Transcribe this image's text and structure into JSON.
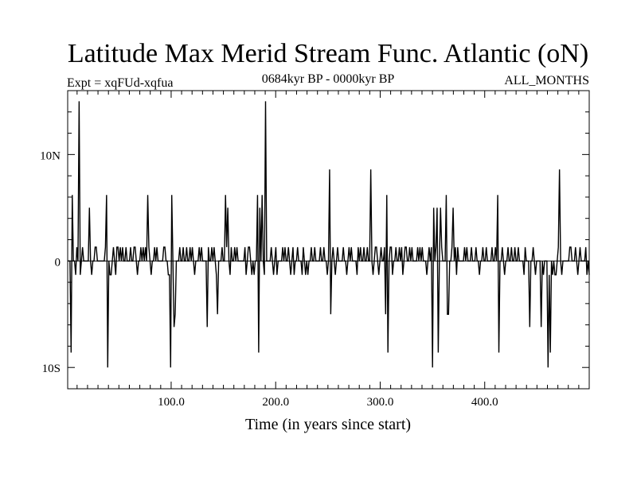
{
  "chart_data": {
    "type": "line",
    "title": "Latitude Max Merid Stream Func. Atlantic (oN)",
    "subtitle_left": "Expt = xqFUd-xqfua",
    "subtitle_center": "0684kyr BP - 0000kyr BP",
    "subtitle_right": "ALL_MONTHS",
    "xlabel": "Time (in years since start)",
    "ylabel": "",
    "xlim": [
      1,
      500
    ],
    "ylim": [
      -12,
      16
    ],
    "x_ticks": [
      {
        "value": 100,
        "label": "100.0"
      },
      {
        "value": 200,
        "label": "200.0"
      },
      {
        "value": 300,
        "label": "300.0"
      },
      {
        "value": 400,
        "label": "400.0"
      }
    ],
    "y_ticks": [
      {
        "value": 10,
        "label": "10N"
      },
      {
        "value": 0,
        "label": "0"
      },
      {
        "value": -10,
        "label": "10S"
      }
    ],
    "x_minor_step": 10,
    "y_minor_step": 2,
    "baseline": 0,
    "series": [
      {
        "name": "latitude_max_stream_function",
        "values": [
          0,
          0,
          0,
          -8.6,
          6.2,
          0,
          0,
          -1.3,
          1.3,
          0,
          15,
          -1.3,
          0,
          1.3,
          0,
          0,
          0,
          0,
          0,
          5,
          0,
          -1.3,
          0,
          0,
          1.3,
          1.3,
          0,
          0,
          0,
          0,
          0,
          0,
          0,
          1.3,
          6.2,
          -10,
          0,
          -1.3,
          -1.3,
          0,
          1.3,
          0,
          -1.3,
          1.3,
          1.3,
          0,
          1.3,
          0,
          1.3,
          0,
          0,
          1.3,
          0,
          0,
          0,
          1.3,
          0,
          0,
          1.3,
          1.3,
          0,
          -1.3,
          0,
          0,
          1.3,
          0,
          1.3,
          0,
          1.3,
          0,
          6.2,
          1.3,
          0,
          -1.3,
          0,
          0,
          1.3,
          0,
          1.3,
          0,
          0,
          0,
          0,
          0,
          1.3,
          1.3,
          0,
          0,
          -1.3,
          -1.3,
          -10,
          6.2,
          0,
          -6.2,
          -5,
          0,
          0,
          0,
          1.3,
          0,
          0,
          1.3,
          0,
          0,
          1.3,
          0,
          0,
          1.3,
          0,
          1.3,
          0,
          -1.3,
          0,
          0,
          0,
          1.3,
          0,
          1.3,
          0,
          0,
          0,
          0,
          -6.2,
          1.3,
          0,
          0,
          1.3,
          0,
          1.3,
          0,
          -1.3,
          -5,
          0,
          0,
          0,
          1.3,
          0,
          0,
          6.2,
          1.3,
          5,
          0,
          -1.3,
          1.3,
          0,
          0,
          1.3,
          0,
          1.3,
          0,
          0,
          0,
          0,
          0,
          0,
          1.3,
          -1.3,
          0,
          1.3,
          1.3,
          0,
          -1.3,
          0,
          -1.3,
          0,
          0,
          6.2,
          -8.6,
          5,
          0,
          6.2,
          0,
          -1.3,
          15,
          0,
          0,
          0,
          0,
          1.3,
          0,
          -1.3,
          0,
          1.3,
          -1.3,
          0,
          0,
          0,
          0,
          1.3,
          0,
          1.3,
          0,
          0,
          1.3,
          0,
          -1.3,
          0,
          1.3,
          -1.3,
          0,
          0,
          1.3,
          0,
          0,
          0,
          -1.3,
          1.3,
          0,
          -1.3,
          0,
          -1.3,
          0,
          0,
          1.3,
          0,
          0,
          1.3,
          0,
          0,
          0,
          0,
          1.3,
          0,
          0,
          1.3,
          0,
          0,
          -1.3,
          0,
          8.6,
          -5,
          0,
          1.3,
          0,
          -1.3,
          0,
          1.3,
          0,
          0,
          0,
          0,
          1.3,
          0,
          0,
          -1.3,
          0,
          1.3,
          0,
          1.3,
          0,
          0,
          0,
          0,
          -1.3,
          1.3,
          0,
          1.3,
          0,
          0,
          1.3,
          0,
          0,
          1.3,
          0,
          0,
          8.6,
          0,
          -1.3,
          0,
          1.3,
          1.3,
          0,
          -1.3,
          0,
          1.3,
          0,
          0,
          1.3,
          -5,
          6.2,
          -8.6,
          0,
          1.3,
          1.3,
          -1.3,
          0,
          0,
          1.3,
          0,
          0,
          1.3,
          0,
          1.3,
          -1.3,
          0,
          1.3,
          1.3,
          0,
          0,
          1.3,
          0,
          1.3,
          0,
          0,
          0,
          0,
          1.3,
          0,
          1.3,
          0,
          1.3,
          0,
          0,
          0,
          -1.3,
          0,
          1.3,
          0,
          1.3,
          -10,
          5,
          0,
          1.3,
          5,
          -8.6,
          0,
          5,
          1.3,
          0,
          0,
          0,
          6.2,
          -5,
          -5,
          0,
          0,
          1.3,
          5,
          0,
          1.3,
          -1.3,
          1.3,
          0,
          0,
          0,
          0,
          0,
          1.3,
          0,
          1.3,
          0,
          0,
          0,
          1.3,
          0,
          0,
          0,
          1.3,
          0,
          0,
          -1.3,
          0,
          0,
          1.3,
          0,
          0,
          1.3,
          0,
          0,
          0,
          0,
          1.3,
          0,
          0,
          1.3,
          0,
          6.2,
          -8.6,
          0,
          0,
          1.3,
          0,
          -1.3,
          0,
          0,
          1.3,
          0,
          0,
          1.3,
          0,
          0,
          1.3,
          0,
          0,
          1.3,
          0,
          0,
          0,
          0,
          -1.3,
          1.3,
          0,
          0,
          0,
          -6.2,
          0,
          0,
          1.3,
          0,
          -1.3,
          0,
          0,
          0,
          0,
          -6.2,
          0,
          -1.3,
          0,
          0,
          0,
          -10,
          -1.3,
          -8.6,
          0,
          -1.3,
          0,
          -1.3,
          -1.3,
          0,
          1.3,
          8.6,
          0,
          -1.3,
          0,
          0,
          0,
          0,
          0,
          0,
          1.3,
          1.3,
          0,
          0,
          0,
          1.3,
          0,
          -1.3,
          0,
          1.3,
          0,
          0,
          0,
          0,
          1.3,
          -1.3,
          0,
          -1.3
        ]
      }
    ]
  }
}
